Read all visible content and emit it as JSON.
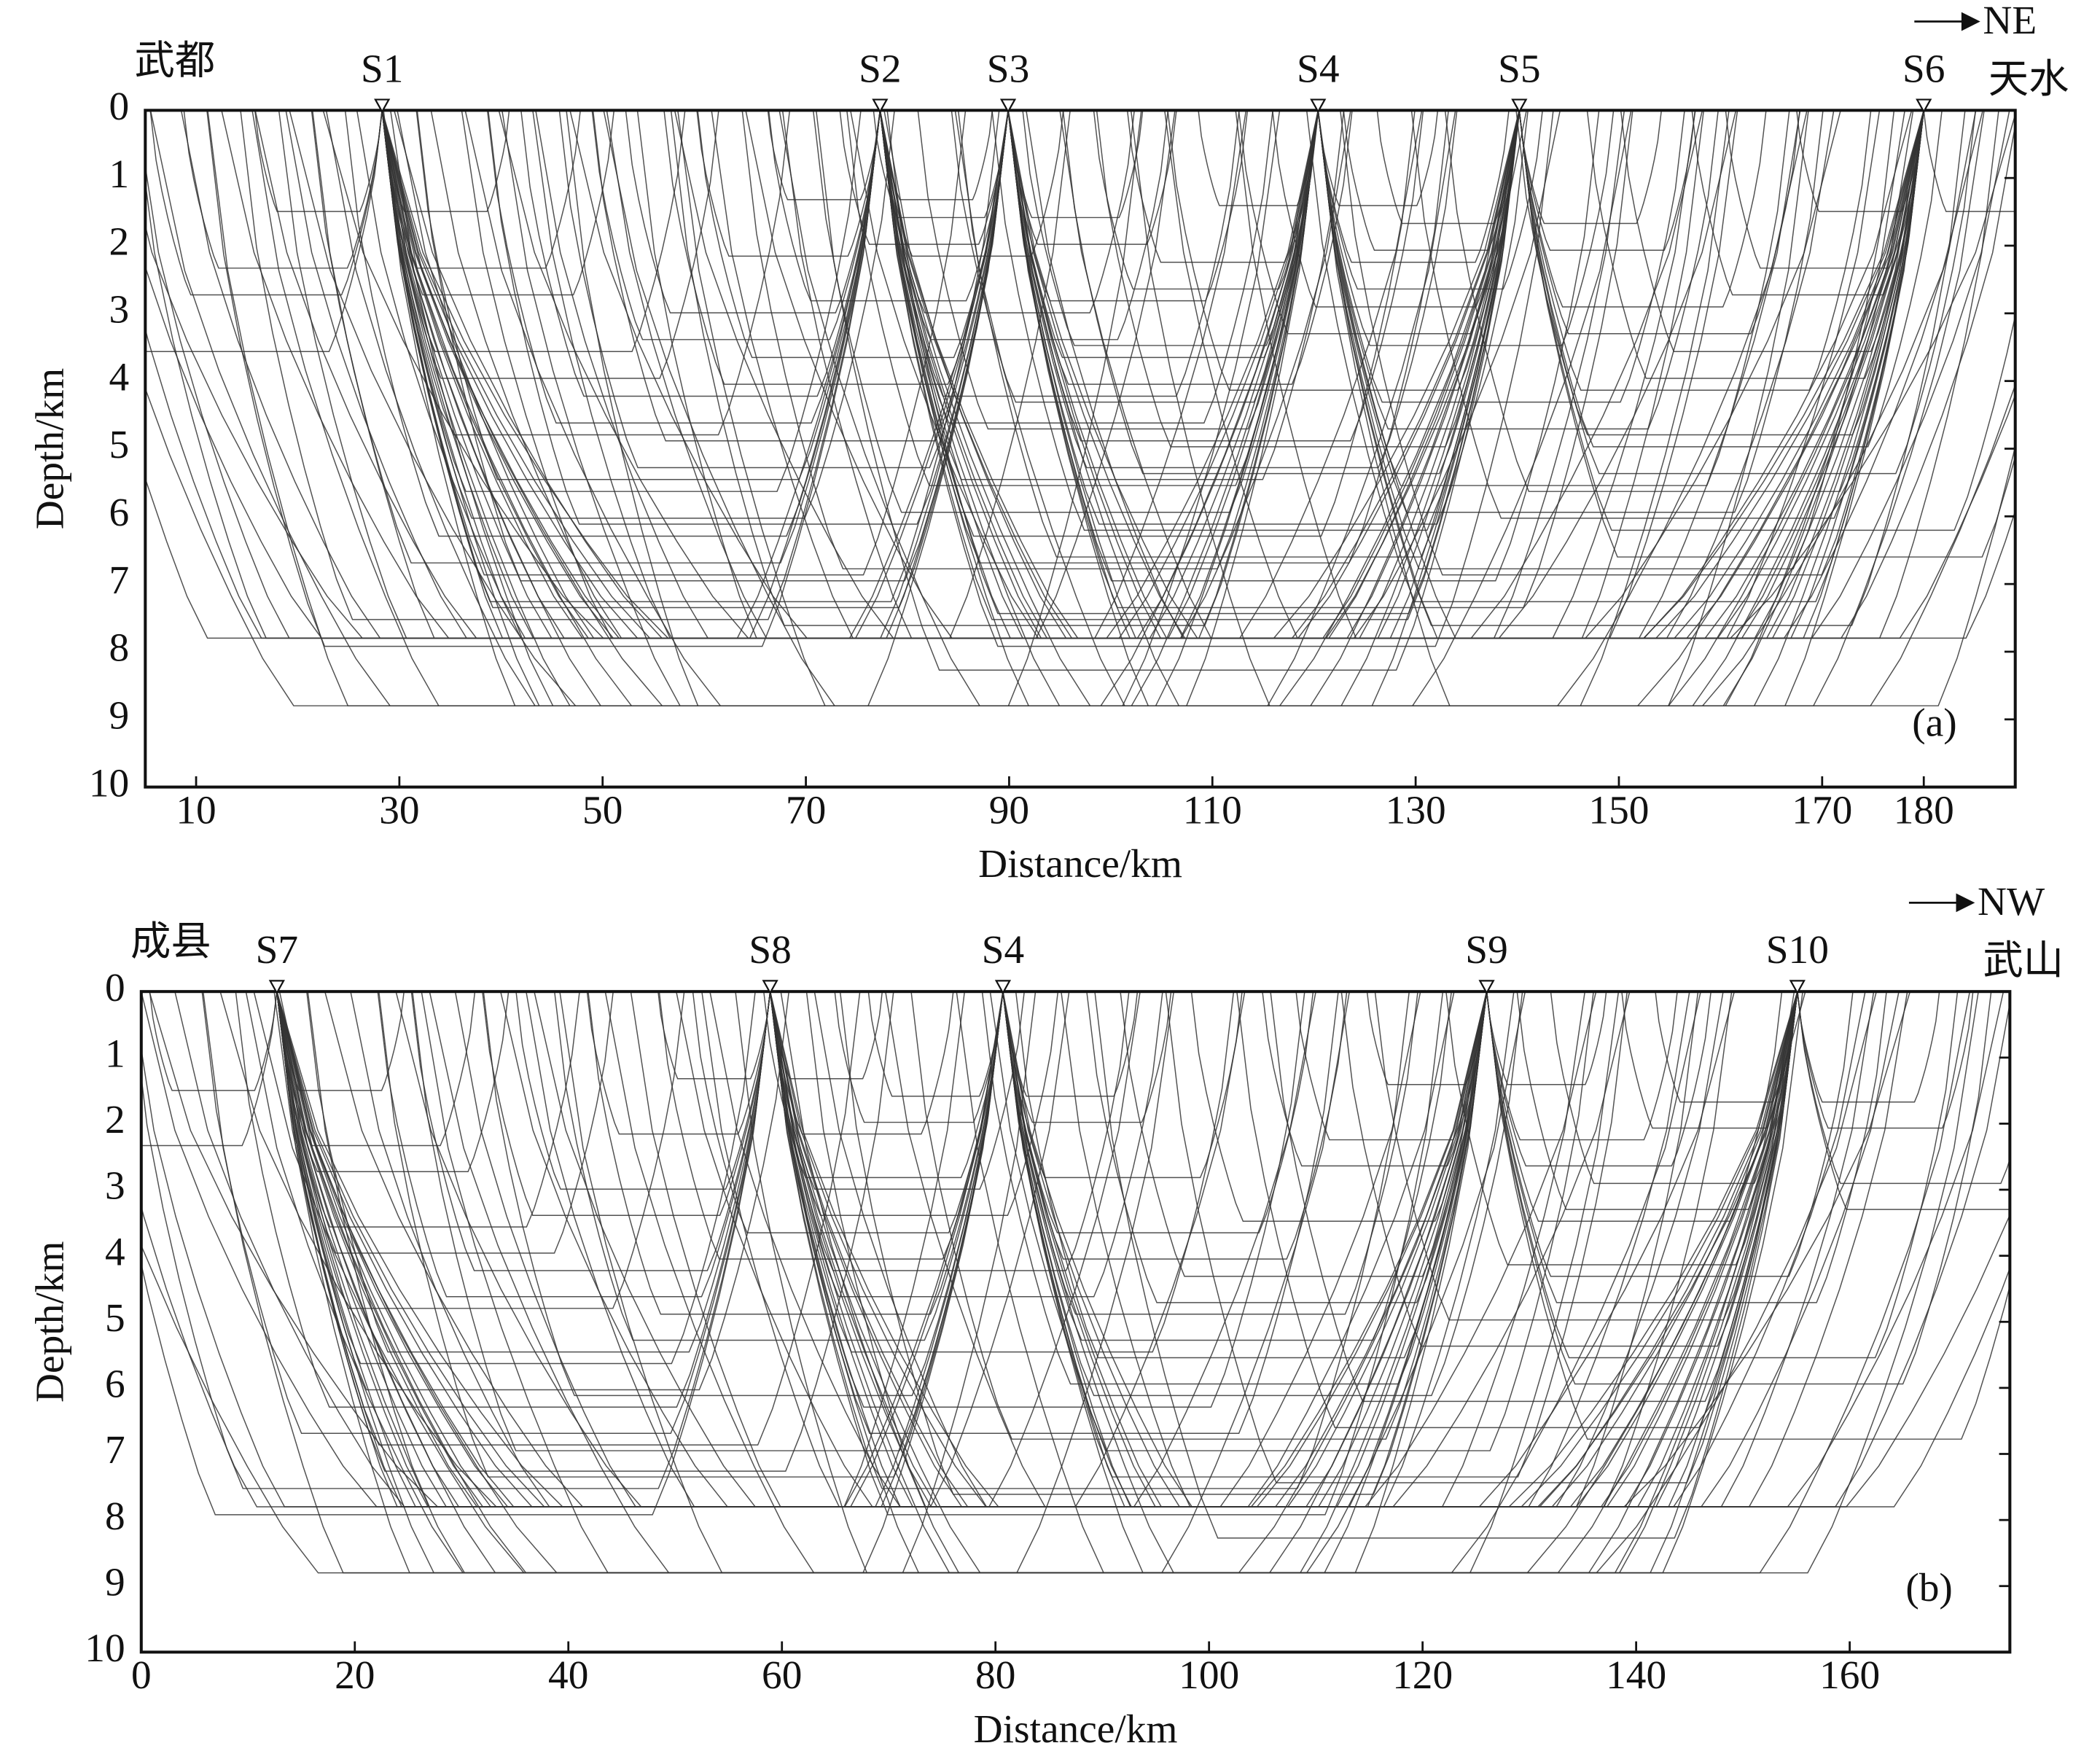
{
  "chart_data": [
    {
      "type": "ray",
      "panel_label": "(a)",
      "xlabel": "Distance/km",
      "ylabel": "Depth/km",
      "place_left": "武都",
      "place_right": "天水",
      "direction": "NE",
      "xlim": [
        5,
        189
      ],
      "ylim": [
        0,
        10
      ],
      "y_inverted": true,
      "xticks": [
        10,
        30,
        50,
        70,
        90,
        110,
        130,
        150,
        170,
        180
      ],
      "yticks": [
        0,
        1,
        2,
        3,
        4,
        5,
        6,
        7,
        8,
        9,
        10
      ],
      "stations": {
        "names": [
          "S1",
          "S2",
          "S3",
          "S4",
          "S5",
          "S6"
        ],
        "x": [
          28.3,
          77.3,
          89.9,
          120.4,
          140.2,
          180
        ]
      }
    },
    {
      "type": "ray",
      "panel_label": "(b)",
      "xlabel": "Distance/km",
      "ylabel": "Depth/km",
      "place_left": "成县",
      "place_right": "武山",
      "direction": "NW",
      "xlim": [
        0,
        175
      ],
      "ylim": [
        0,
        10
      ],
      "y_inverted": true,
      "xticks": [
        0,
        20,
        40,
        60,
        80,
        100,
        120,
        140,
        160
      ],
      "yticks": [
        0,
        1,
        2,
        3,
        4,
        5,
        6,
        7,
        8,
        9,
        10
      ],
      "stations": {
        "names": [
          "S7",
          "S8",
          "S4",
          "S9",
          "S10"
        ],
        "x": [
          12.7,
          58.9,
          80.7,
          126,
          155.1
        ]
      }
    }
  ]
}
